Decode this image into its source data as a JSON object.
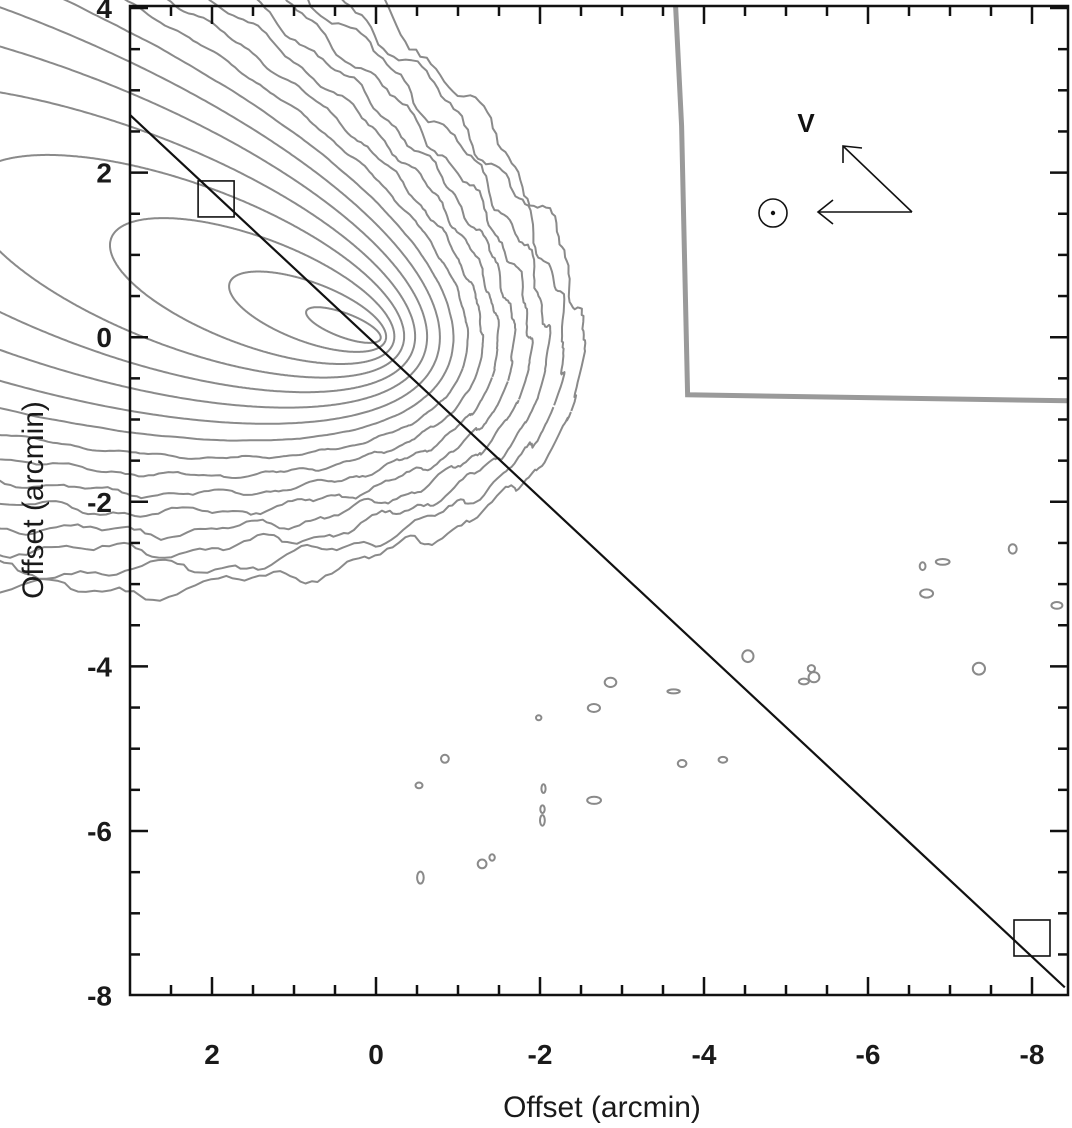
{
  "chart_data": {
    "type": "contour",
    "title": "",
    "xlabel": "Offset (arcmin)",
    "ylabel": "Offset (arcmin)",
    "xlim": [
      3,
      -8.4
    ],
    "ylim": [
      -8,
      4
    ],
    "x_ticks": [
      2,
      0,
      -2,
      -4,
      -6,
      -8
    ],
    "y_ticks": [
      4,
      2,
      0,
      -2,
      -4,
      -6,
      -8
    ],
    "x_tick_labels": [
      "2",
      "0",
      "-2",
      "-4",
      "-6",
      "-8"
    ],
    "y_tick_labels": [
      "4",
      "2",
      "0",
      "-2",
      "-4",
      "-6",
      "-8"
    ],
    "minor_tick_step": 0.5,
    "grid": false,
    "contour_center": [
      0,
      0
    ],
    "contour_levels": 16,
    "cut_line": {
      "start": [
        3,
        2.7
      ],
      "end": [
        -8.4,
        -7.9
      ]
    },
    "markers": [
      {
        "shape": "square",
        "x": 1.95,
        "y": 1.68
      },
      {
        "shape": "square",
        "x": -8.0,
        "y": -7.3
      }
    ],
    "inset": {
      "label": "V",
      "x_range": [
        -3.8,
        -8.4
      ],
      "y_range": [
        -0.7,
        4
      ],
      "symbol": "sun-symbol"
    },
    "colors": {
      "contours": "#8a8a8a",
      "axes": "#111111",
      "cut_line": "#111111",
      "inset_border": "#9a9a9a"
    }
  }
}
